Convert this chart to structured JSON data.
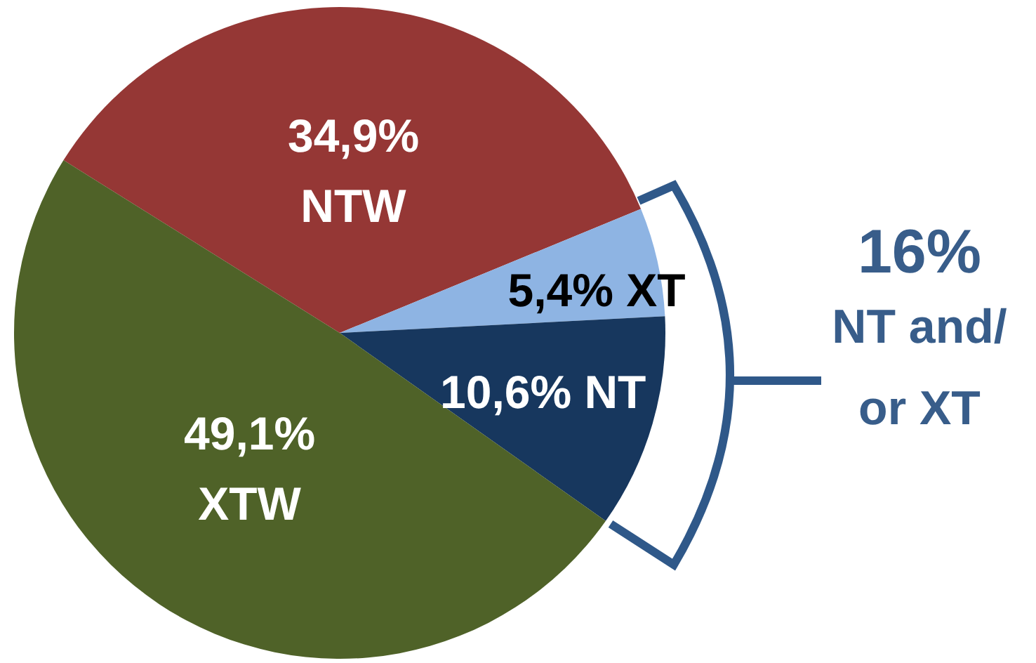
{
  "chart_data": {
    "type": "pie",
    "categories": [
      "NTW",
      "XT",
      "NT",
      "XTW"
    ],
    "values": [
      34.9,
      5.4,
      10.6,
      49.1
    ],
    "value_labels": [
      "34,9%",
      "5,4%",
      "10,6%",
      "49,1%"
    ],
    "colors": [
      "#953735",
      "#8eb4e3",
      "#17375e",
      "#4f6228"
    ],
    "annotations": [
      "16%",
      "NT and/ or XT"
    ]
  }
}
